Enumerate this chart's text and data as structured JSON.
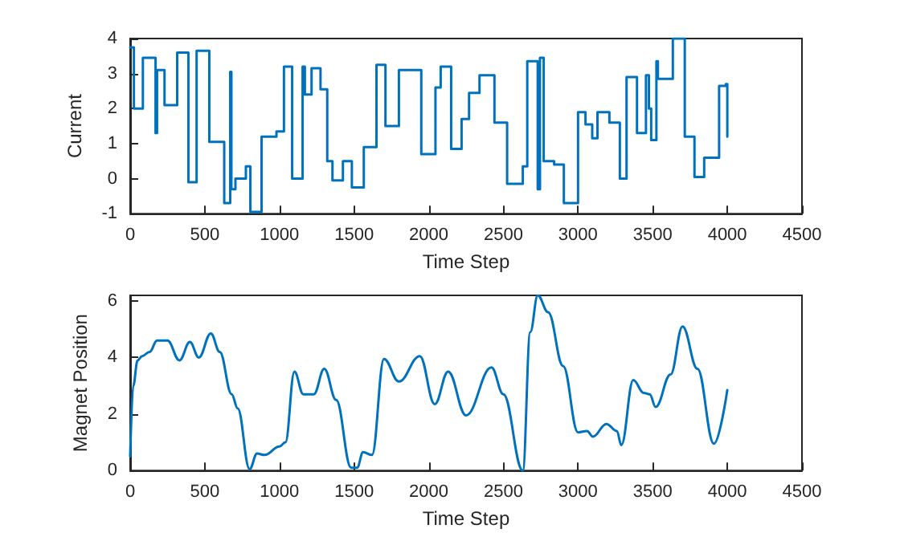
{
  "chart_data": [
    {
      "type": "step",
      "xlabel": "Time Step",
      "ylabel": "Current",
      "xlim": [
        0,
        4500
      ],
      "xticks": [
        0,
        500,
        1000,
        1500,
        2000,
        2500,
        3000,
        3500,
        4000,
        4500
      ],
      "ylim": [
        -1,
        4
      ],
      "yticks": [
        -1,
        0,
        1,
        2,
        3,
        4
      ],
      "grid": false,
      "x": [
        0,
        25,
        85,
        170,
        180,
        230,
        315,
        390,
        445,
        530,
        630,
        670,
        678,
        705,
        775,
        805,
        880,
        980,
        1030,
        1085,
        1155,
        1170,
        1215,
        1275,
        1320,
        1355,
        1425,
        1485,
        1565,
        1650,
        1710,
        1800,
        1950,
        2045,
        2080,
        2150,
        2220,
        2270,
        2340,
        2440,
        2525,
        2630,
        2660,
        2730,
        2745,
        2770,
        2840,
        2905,
        3000,
        3050,
        3095,
        3130,
        3210,
        3280,
        3325,
        3395,
        3455,
        3475,
        3490,
        3525,
        3535,
        3635,
        3715,
        3780,
        3845,
        3945,
        3990,
        4000
      ],
      "series": [
        {
          "color": "#0072bd",
          "values": [
            3.75,
            2.0,
            3.45,
            1.3,
            3.1,
            2.1,
            3.6,
            -0.1,
            3.65,
            1.05,
            -0.7,
            3.05,
            -0.3,
            0.0,
            0.35,
            -0.95,
            1.2,
            1.35,
            3.2,
            0.0,
            3.2,
            2.4,
            3.15,
            2.55,
            0.5,
            -0.05,
            0.5,
            -0.25,
            0.9,
            3.25,
            1.5,
            3.1,
            0.7,
            2.6,
            3.2,
            0.85,
            1.7,
            2.45,
            2.95,
            1.6,
            -0.15,
            0.35,
            3.35,
            -0.3,
            3.45,
            0.5,
            0.4,
            -0.7,
            1.9,
            1.55,
            1.15,
            1.9,
            1.6,
            0.0,
            2.9,
            1.3,
            2.95,
            2.0,
            1.1,
            3.35,
            2.85,
            4.0,
            1.2,
            0.05,
            0.6,
            2.65,
            2.7,
            1.2
          ]
        }
      ]
    },
    {
      "type": "line",
      "xlabel": "Time Step",
      "ylabel": "Magnet Position",
      "xlim": [
        0,
        4500
      ],
      "xticks": [
        0,
        500,
        1000,
        1500,
        2000,
        2500,
        3000,
        3500,
        4000,
        4500
      ],
      "ylim": [
        0,
        6.2
      ],
      "yticks": [
        0,
        2,
        4,
        6
      ],
      "grid": false,
      "x": [
        0,
        20,
        50,
        80,
        130,
        180,
        250,
        330,
        400,
        460,
        540,
        600,
        680,
        720,
        800,
        850,
        900,
        1000,
        1040,
        1100,
        1160,
        1230,
        1300,
        1380,
        1480,
        1520,
        1560,
        1620,
        1700,
        1800,
        1940,
        2040,
        2130,
        2250,
        2420,
        2500,
        2630,
        2680,
        2730,
        2800,
        2900,
        3000,
        3060,
        3100,
        3190,
        3260,
        3290,
        3370,
        3440,
        3480,
        3520,
        3620,
        3700,
        3800,
        3910,
        4000
      ],
      "series": [
        {
          "color": "#0072bd",
          "values": [
            0.5,
            3.0,
            3.9,
            4.05,
            4.2,
            4.6,
            4.6,
            3.9,
            4.55,
            4.0,
            4.85,
            4.2,
            2.7,
            2.2,
            0.05,
            0.6,
            0.55,
            0.85,
            1.0,
            3.5,
            2.7,
            2.7,
            3.6,
            2.5,
            0.1,
            0.1,
            0.65,
            0.55,
            3.95,
            3.15,
            4.05,
            2.35,
            3.5,
            1.95,
            3.65,
            2.7,
            0.0,
            4.9,
            6.2,
            5.6,
            3.7,
            1.35,
            1.4,
            1.2,
            1.65,
            1.4,
            0.9,
            3.2,
            2.75,
            2.7,
            2.25,
            3.4,
            5.1,
            3.6,
            0.95,
            2.85
          ]
        }
      ]
    }
  ]
}
